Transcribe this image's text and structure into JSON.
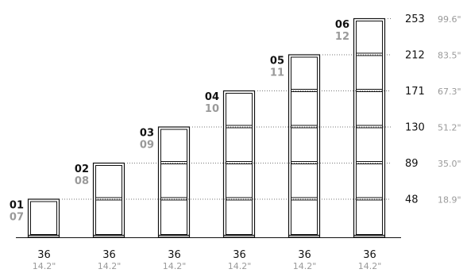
{
  "colors": {
    "outline": "#111111",
    "secondary": "#9a9a9a",
    "guide": "#777777",
    "background": "#ffffff"
  },
  "units": [
    {
      "code": "01",
      "alt_code": "07",
      "width_cm": "36",
      "width_in": "14.2\"",
      "height_cm": "48",
      "height_in": "18.9\"",
      "modules": 1
    },
    {
      "code": "02",
      "alt_code": "08",
      "width_cm": "36",
      "width_in": "14.2\"",
      "height_cm": "89",
      "height_in": "35.0\"",
      "modules": 2
    },
    {
      "code": "03",
      "alt_code": "09",
      "width_cm": "36",
      "width_in": "14.2\"",
      "height_cm": "130",
      "height_in": "51.2\"",
      "modules": 3
    },
    {
      "code": "04",
      "alt_code": "10",
      "width_cm": "36",
      "width_in": "14.2\"",
      "height_cm": "171",
      "height_in": "67.3\"",
      "modules": 4
    },
    {
      "code": "05",
      "alt_code": "11",
      "width_cm": "36",
      "width_in": "14.2\"",
      "height_cm": "212",
      "height_in": "83.5\"",
      "modules": 5
    },
    {
      "code": "06",
      "alt_code": "12",
      "width_cm": "36",
      "width_in": "14.2\"",
      "height_cm": "253",
      "height_in": "99.6\"",
      "modules": 6
    }
  ]
}
